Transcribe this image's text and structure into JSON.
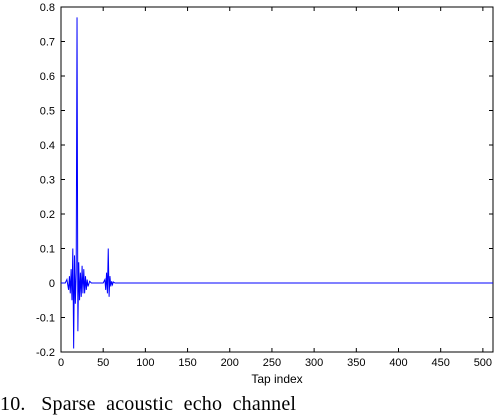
{
  "caption": "10.   Sparse  acoustic  echo  channel",
  "chart_data": {
    "type": "line",
    "title": "",
    "xlabel": "Tap index",
    "ylabel": "",
    "xlim": [
      0,
      512
    ],
    "ylim": [
      -0.2,
      0.8
    ],
    "xticks": [
      0,
      50,
      100,
      150,
      200,
      250,
      300,
      350,
      400,
      450,
      500
    ],
    "yticks": [
      -0.2,
      -0.1,
      0,
      0.1,
      0.2,
      0.3,
      0.4,
      0.5,
      0.6,
      0.7,
      0.8
    ],
    "grid": false,
    "line_color": "#0000ff",
    "series": [
      {
        "x": [
          0,
          5,
          7,
          9,
          10,
          11,
          12,
          13,
          14,
          15,
          16,
          17,
          18,
          19,
          20,
          21,
          22,
          23,
          24,
          25,
          26,
          27,
          28,
          29,
          30,
          31,
          32,
          34,
          36,
          40,
          45,
          50,
          52,
          53,
          54,
          55,
          56,
          57,
          58,
          59,
          60,
          61,
          62,
          64,
          66,
          70,
          80,
          512
        ],
        "y": [
          0,
          0,
          0.01,
          -0.02,
          0.02,
          -0.03,
          0.04,
          -0.05,
          0.1,
          -0.19,
          0.08,
          -0.06,
          0.03,
          0.77,
          -0.14,
          0.06,
          -0.05,
          0.03,
          -0.04,
          0.05,
          -0.03,
          0.04,
          -0.03,
          0.02,
          -0.02,
          0.01,
          -0.01,
          0.005,
          0,
          0,
          0,
          0,
          0.01,
          -0.02,
          0.03,
          -0.03,
          0.1,
          -0.04,
          0.02,
          -0.01,
          0.005,
          -0.005,
          0.003,
          0,
          0,
          0,
          0,
          0
        ]
      }
    ]
  }
}
